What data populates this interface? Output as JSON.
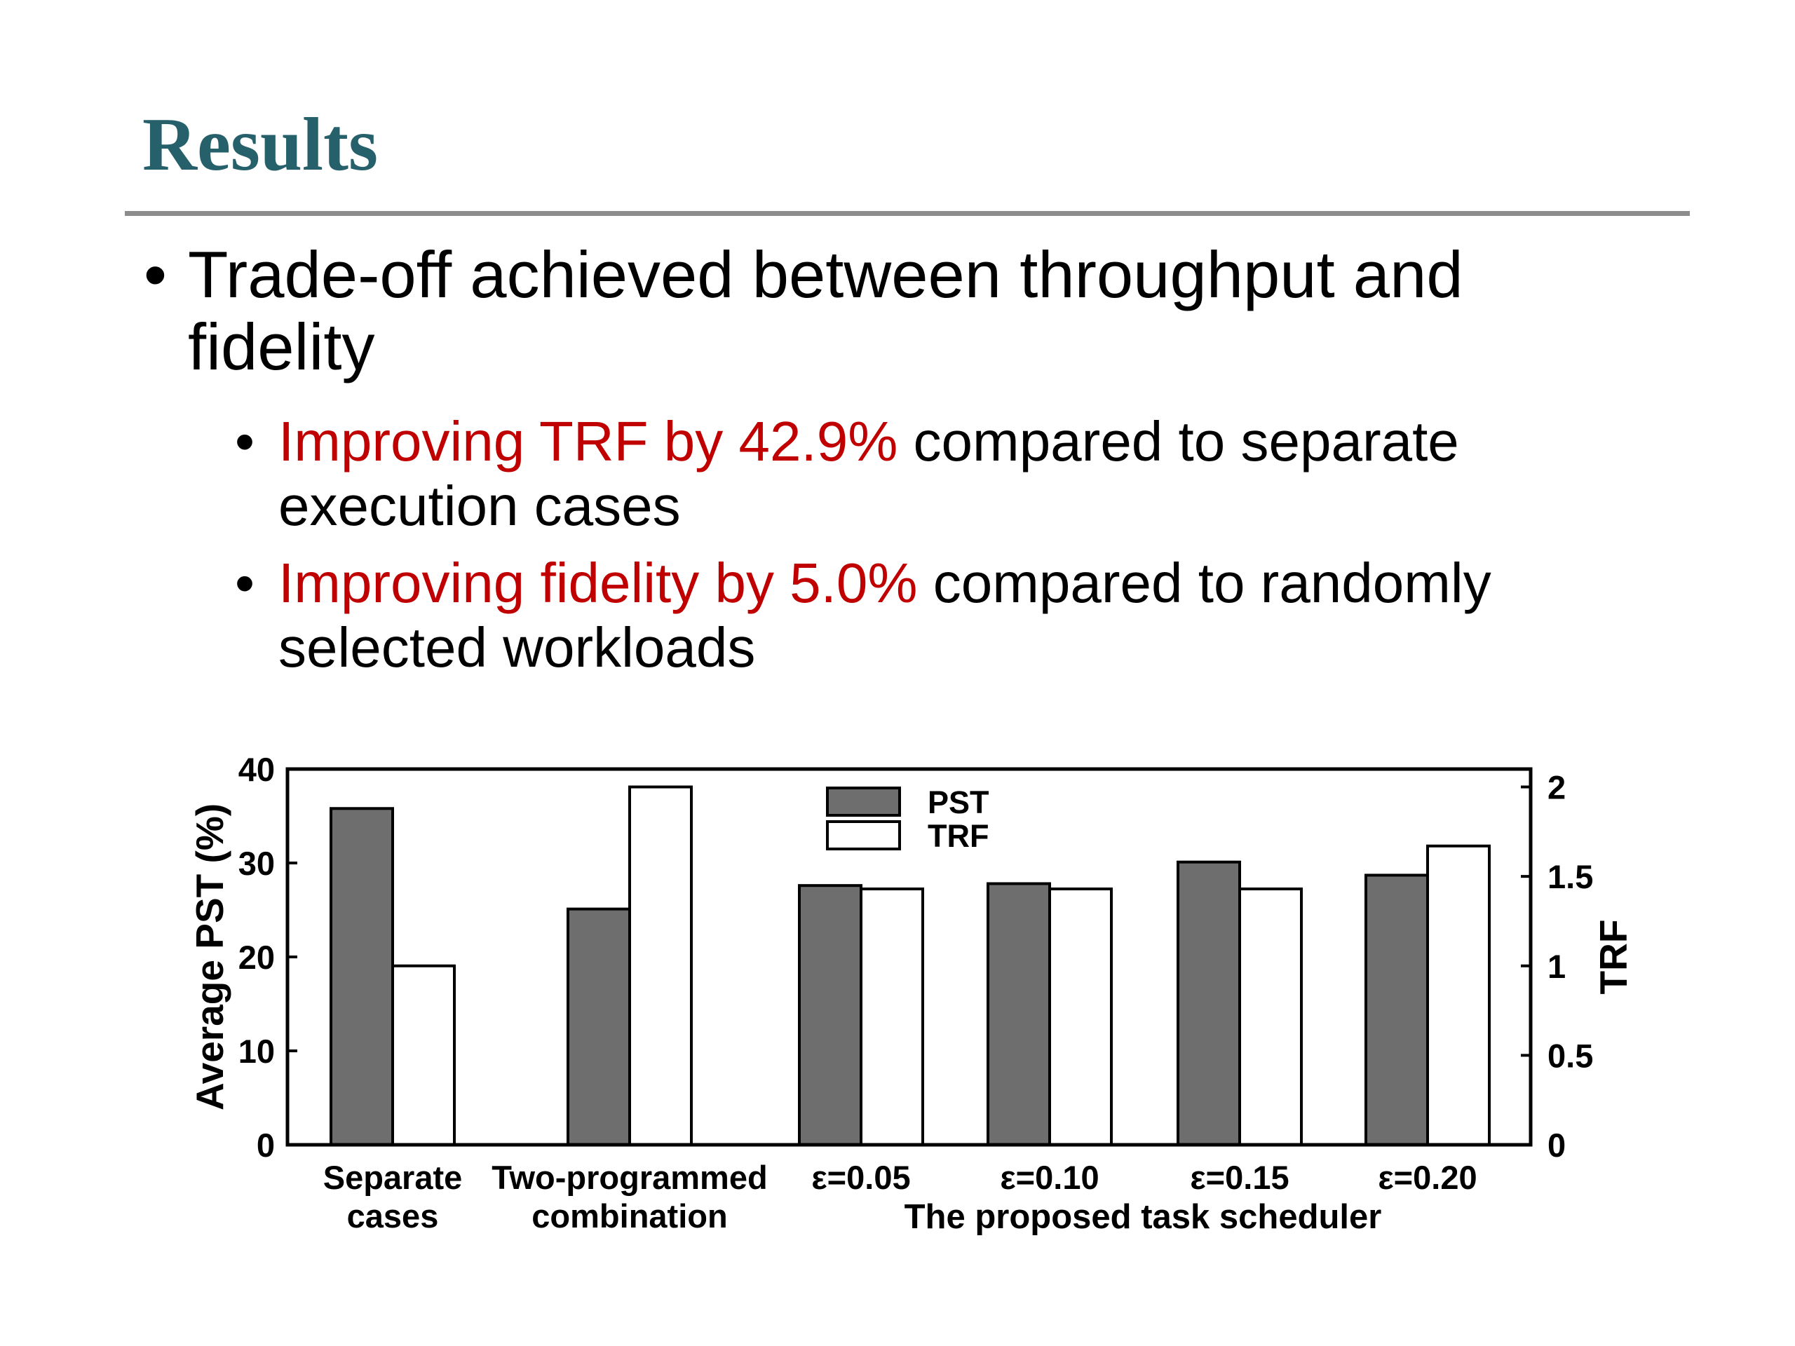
{
  "slide": {
    "title": "Results",
    "bullet": "Trade-off achieved between throughput and fidelity",
    "sub_bullets": [
      {
        "highlight": "Improving TRF by 42.9%",
        "rest": " compared to separate execution cases"
      },
      {
        "highlight": "Improving fidelity by 5.0%",
        "rest": " compared to randomly selected workloads"
      }
    ],
    "bullet_glyph": "•"
  },
  "colors": {
    "title": "#26606b",
    "highlight": "#c00000",
    "pst_bar": "#6e6e6e",
    "trf_bar": "#ffffff"
  },
  "chart_data": {
    "type": "bar",
    "categories": [
      "Separate cases",
      "Two-programmed combination",
      "ε=0.05",
      "ε=0.10",
      "ε=0.15",
      "ε=0.20"
    ],
    "category_lines": [
      [
        "Separate",
        "cases"
      ],
      [
        "Two-programmed",
        "combination"
      ],
      [
        "ε=0.05"
      ],
      [
        "ε=0.10"
      ],
      [
        "ε=0.15"
      ],
      [
        "ε=0.20"
      ]
    ],
    "group_label": "The proposed task scheduler",
    "series": [
      {
        "name": "PST",
        "axis": "left",
        "values": [
          35.8,
          25.1,
          27.6,
          27.8,
          30.1,
          28.7
        ]
      },
      {
        "name": "TRF",
        "axis": "right",
        "values": [
          1.0,
          2.0,
          1.43,
          1.43,
          1.43,
          1.67
        ]
      }
    ],
    "ylabel": "Average PST (%)",
    "ylabel_right": "TRF",
    "ylim": [
      0,
      40
    ],
    "ylim_right": [
      0,
      2.1
    ],
    "yticks": [
      "0",
      "10",
      "20",
      "30",
      "40"
    ],
    "yticks_right": [
      "0",
      "0.5",
      "1",
      "1.5",
      "2"
    ],
    "legend_position": "top-center",
    "grid": false
  }
}
